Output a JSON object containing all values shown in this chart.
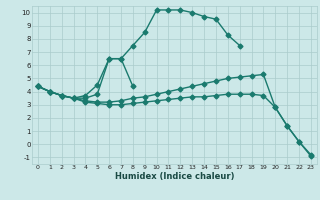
{
  "xlabel": "Humidex (Indice chaleur)",
  "xlim": [
    -0.5,
    23.5
  ],
  "ylim": [
    -1.5,
    10.5
  ],
  "yticks": [
    -1,
    0,
    1,
    2,
    3,
    4,
    5,
    6,
    7,
    8,
    9,
    10
  ],
  "xticks": [
    0,
    1,
    2,
    3,
    4,
    5,
    6,
    7,
    8,
    9,
    10,
    11,
    12,
    13,
    14,
    15,
    16,
    17,
    18,
    19,
    20,
    21,
    22,
    23
  ],
  "background_color": "#cce8e8",
  "grid_color": "#aacccc",
  "line_color": "#1a7a6e",
  "line_width": 1.0,
  "marker": "D",
  "marker_size": 2.5,
  "lines": [
    {
      "x": [
        0,
        1,
        2,
        3,
        4,
        5,
        6,
        7,
        8,
        9,
        10,
        11,
        12,
        13,
        14,
        15,
        16,
        17
      ],
      "y": [
        4.4,
        4.0,
        3.7,
        3.5,
        3.7,
        4.5,
        6.5,
        6.5,
        7.5,
        8.5,
        10.2,
        10.2,
        10.2,
        10.0,
        9.7,
        9.5,
        8.3,
        7.5
      ]
    },
    {
      "x": [
        0,
        1,
        2,
        3,
        4,
        5,
        6,
        7,
        8
      ],
      "y": [
        4.4,
        4.0,
        3.7,
        3.5,
        3.5,
        3.8,
        6.5,
        6.5,
        4.4
      ]
    },
    {
      "x": [
        0,
        1,
        2,
        3,
        4,
        5,
        6,
        7,
        8,
        9,
        10,
        11,
        12,
        13,
        14,
        15,
        16,
        17,
        18,
        19,
        20,
        21,
        22,
        23
      ],
      "y": [
        4.4,
        4.0,
        3.7,
        3.5,
        3.3,
        3.2,
        3.2,
        3.3,
        3.5,
        3.6,
        3.8,
        4.0,
        4.2,
        4.4,
        4.6,
        4.8,
        5.0,
        5.1,
        5.2,
        5.3,
        2.8,
        1.4,
        0.2,
        -0.8
      ]
    },
    {
      "x": [
        0,
        1,
        2,
        3,
        4,
        5,
        6,
        7,
        8,
        9,
        10,
        11,
        12,
        13,
        14,
        15,
        16,
        17,
        18,
        19,
        20,
        21,
        22,
        23
      ],
      "y": [
        4.4,
        4.0,
        3.7,
        3.5,
        3.2,
        3.1,
        3.0,
        3.0,
        3.1,
        3.2,
        3.3,
        3.4,
        3.5,
        3.6,
        3.6,
        3.7,
        3.8,
        3.8,
        3.8,
        3.7,
        2.8,
        1.4,
        0.2,
        -0.9
      ]
    }
  ]
}
